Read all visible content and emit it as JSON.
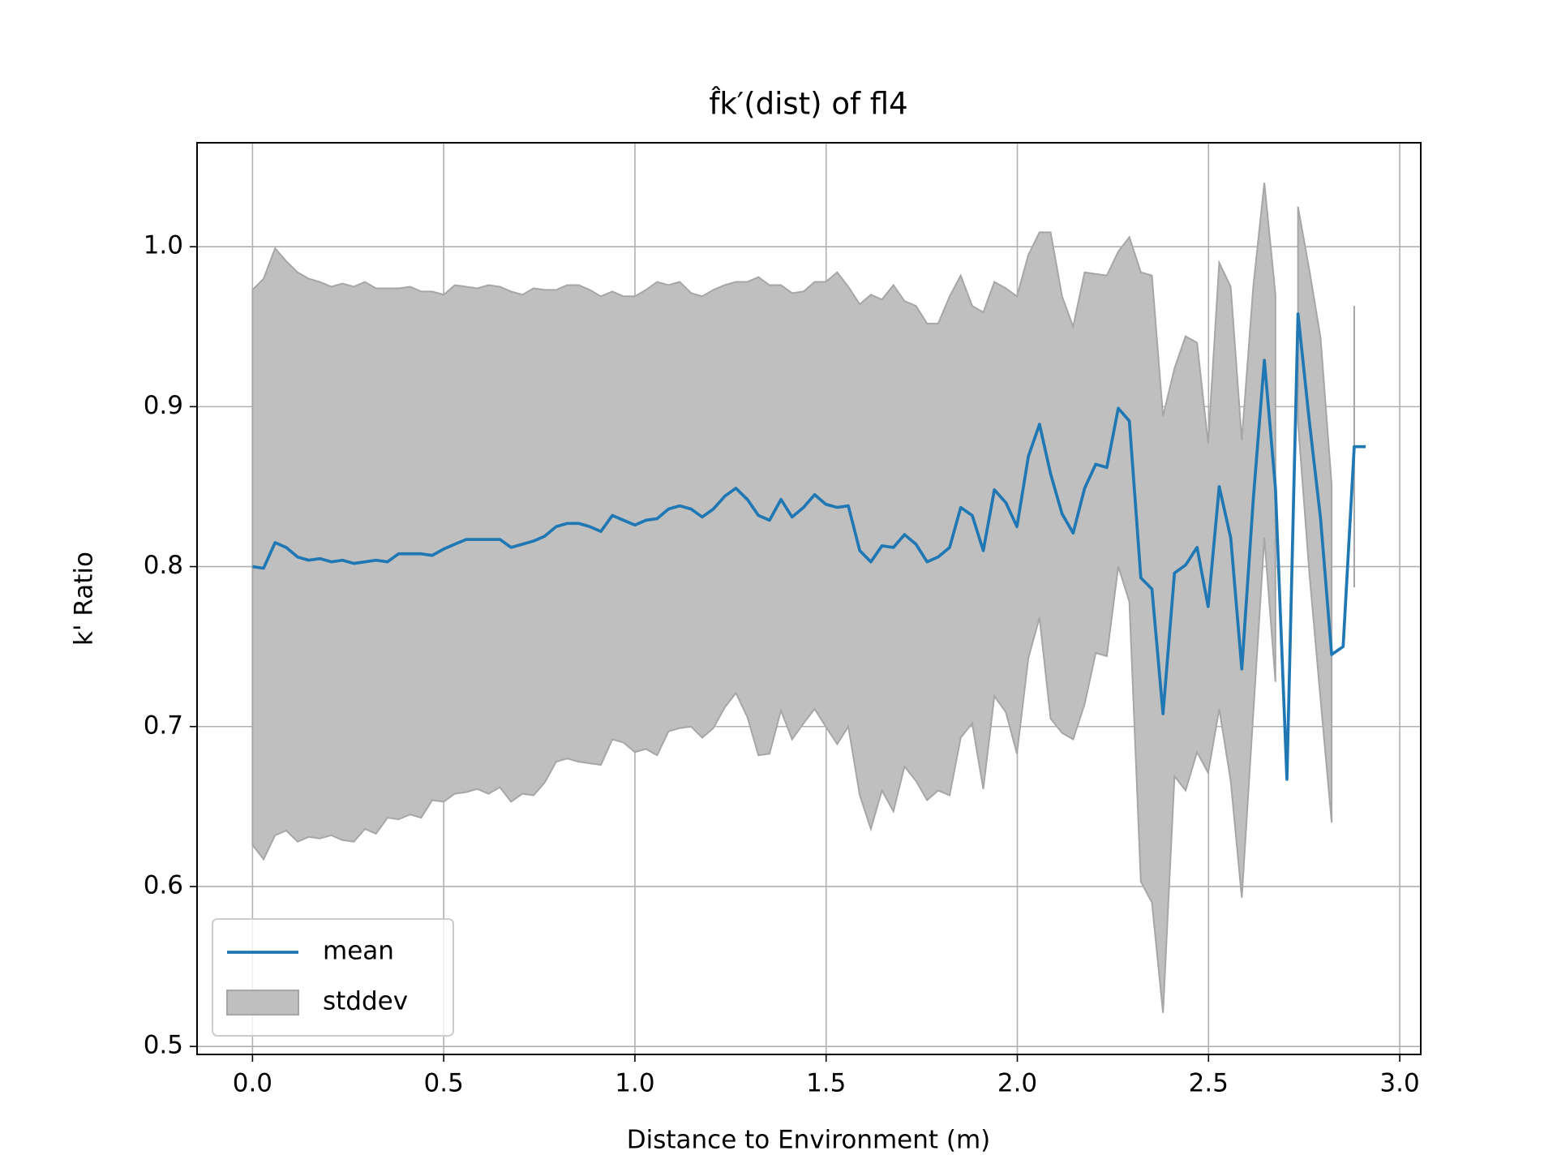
{
  "chart_data": {
    "type": "line",
    "title": "f̂k′(dist) of fl4",
    "xlabel": "Distance to Environment (m)",
    "ylabel": "k' Ratio",
    "xlim": [
      -0.145,
      3.055
    ],
    "ylim": [
      0.495,
      1.065
    ],
    "xticks": [
      {
        "value": 0,
        "label": "0.0"
      },
      0.5,
      {
        "value": 1,
        "label": "1.0"
      },
      1.5,
      {
        "value": 2,
        "label": "2.0"
      },
      2.5,
      {
        "value": 3,
        "label": "3.0"
      }
    ],
    "yticks": [
      0.5,
      0.6,
      0.7,
      0.8,
      0.9,
      {
        "value": 1,
        "label": "1.0"
      }
    ],
    "grid": true,
    "legend": "lower left",
    "x": [
      0,
      0.029,
      0.059,
      0.088,
      0.118,
      0.147,
      0.176,
      0.206,
      0.235,
      0.265,
      0.294,
      0.323,
      0.353,
      0.382,
      0.412,
      0.441,
      0.47,
      0.5,
      0.529,
      0.559,
      0.588,
      0.617,
      0.647,
      0.676,
      0.706,
      0.735,
      0.764,
      0.794,
      0.823,
      0.853,
      0.882,
      0.911,
      0.941,
      0.97,
      1.0,
      1.029,
      1.058,
      1.088,
      1.117,
      1.147,
      1.176,
      1.205,
      1.235,
      1.264,
      1.294,
      1.323,
      1.352,
      1.382,
      1.411,
      1.441,
      1.47,
      1.499,
      1.529,
      1.558,
      1.588,
      1.617,
      1.646,
      1.676,
      1.705,
      1.735,
      1.764,
      1.793,
      1.823,
      1.852,
      1.882,
      1.911,
      1.94,
      1.97,
      1.999,
      2.029,
      2.058,
      2.087,
      2.117,
      2.146,
      2.176,
      2.205,
      2.234,
      2.264,
      2.293,
      2.323,
      2.352,
      2.381,
      2.411,
      2.44,
      2.47,
      2.499,
      2.528,
      2.558,
      2.587,
      2.617,
      2.646,
      2.675,
      2.705,
      2.734,
      2.764,
      2.793,
      2.822,
      2.852,
      2.881,
      2.911
    ],
    "series": [
      {
        "name": "mean",
        "color": "#1f77b4",
        "values": [
          0.8,
          0.799,
          0.815,
          0.812,
          0.806,
          0.804,
          0.805,
          0.803,
          0.804,
          0.802,
          0.803,
          0.804,
          0.803,
          0.808,
          0.808,
          0.808,
          0.807,
          0.811,
          0.814,
          0.817,
          0.817,
          0.817,
          0.817,
          0.812,
          0.814,
          0.816,
          0.819,
          0.825,
          0.827,
          0.827,
          0.825,
          0.822,
          0.832,
          0.829,
          0.826,
          0.829,
          0.83,
          0.836,
          0.838,
          0.836,
          0.831,
          0.836,
          0.844,
          0.849,
          0.842,
          0.832,
          0.829,
          0.842,
          0.831,
          0.837,
          0.845,
          0.839,
          0.837,
          0.838,
          0.81,
          0.803,
          0.813,
          0.812,
          0.82,
          0.814,
          0.803,
          0.806,
          0.812,
          0.837,
          0.832,
          0.81,
          0.848,
          0.84,
          0.825,
          0.869,
          0.889,
          0.858,
          0.833,
          0.821,
          0.849,
          0.864,
          0.862,
          0.899,
          0.891,
          0.793,
          0.786,
          0.708,
          0.796,
          0.801,
          0.812,
          0.775,
          0.85,
          0.818,
          0.736,
          0.842,
          0.929,
          0.849,
          0.667,
          0.958,
          0.89,
          0.83,
          0.745,
          0.75,
          0.875,
          0.875
        ]
      },
      {
        "name": "stddev",
        "color": "#bfbfbf",
        "edgecolor": "#a6a6a6",
        "upper": [
          0.973,
          0.98,
          0.999,
          0.991,
          0.984,
          0.98,
          0.978,
          0.975,
          0.977,
          0.975,
          0.978,
          0.974,
          0.974,
          0.974,
          0.975,
          0.972,
          0.972,
          0.97,
          0.976,
          0.975,
          0.974,
          0.976,
          0.975,
          0.972,
          0.97,
          0.974,
          0.973,
          0.973,
          0.976,
          0.976,
          0.973,
          0.969,
          0.972,
          0.969,
          0.969,
          0.973,
          0.978,
          0.976,
          0.978,
          0.971,
          0.969,
          0.973,
          0.976,
          0.978,
          0.978,
          0.981,
          0.976,
          0.976,
          0.971,
          0.972,
          0.978,
          0.978,
          0.984,
          0.975,
          0.964,
          0.97,
          0.967,
          0.976,
          0.966,
          0.963,
          0.952,
          0.952,
          0.969,
          0.982,
          0.963,
          0.959,
          0.978,
          0.974,
          0.969,
          0.995,
          1.009,
          1.009,
          0.969,
          0.95,
          0.984,
          0.983,
          0.982,
          0.997,
          1.006,
          0.984,
          0.982,
          0.894,
          0.924,
          0.944,
          0.94,
          0.877,
          0.99,
          0.975,
          0.879,
          0.975,
          1.04,
          0.97,
          null,
          1.025,
          0.985,
          0.943,
          0.851,
          null,
          0.963,
          null
        ],
        "lower": [
          0.626,
          0.617,
          0.632,
          0.635,
          0.628,
          0.631,
          0.63,
          0.632,
          0.629,
          0.628,
          0.636,
          0.633,
          0.643,
          0.642,
          0.645,
          0.643,
          0.654,
          0.653,
          0.658,
          0.659,
          0.661,
          0.658,
          0.662,
          0.653,
          0.658,
          0.657,
          0.665,
          0.678,
          0.68,
          0.678,
          0.677,
          0.676,
          0.692,
          0.69,
          0.684,
          0.686,
          0.682,
          0.697,
          0.699,
          0.7,
          0.693,
          0.699,
          0.712,
          0.721,
          0.706,
          0.682,
          0.683,
          0.71,
          0.692,
          0.702,
          0.711,
          0.7,
          0.689,
          0.7,
          0.657,
          0.636,
          0.66,
          0.647,
          0.675,
          0.666,
          0.654,
          0.66,
          0.657,
          0.693,
          0.702,
          0.661,
          0.719,
          0.709,
          0.683,
          0.743,
          0.768,
          0.705,
          0.696,
          0.692,
          0.714,
          0.746,
          0.744,
          0.8,
          0.778,
          0.603,
          0.59,
          0.521,
          0.669,
          0.66,
          0.684,
          0.671,
          0.711,
          0.666,
          0.593,
          0.708,
          0.818,
          0.728,
          null,
          0.89,
          0.795,
          0.717,
          0.64,
          null,
          0.787,
          null
        ]
      }
    ]
  }
}
